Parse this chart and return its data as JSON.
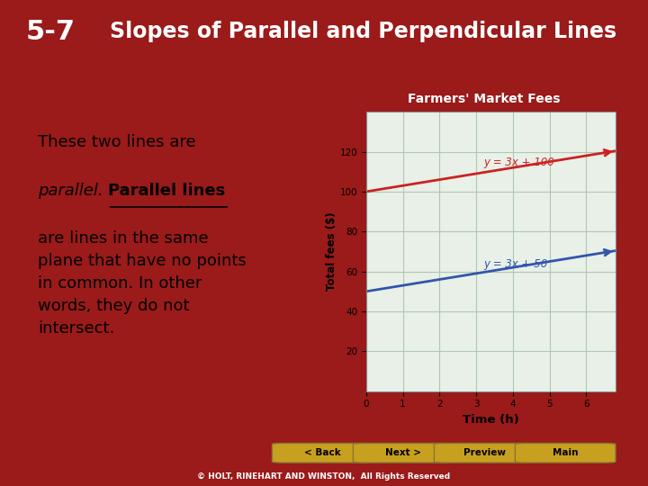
{
  "title_number": "5-7",
  "title_text": "Slopes of Parallel and Perpendicular Lines",
  "title_bg_color": "#8B0000",
  "title_text_color": "#FFFFFF",
  "main_bg_color": "#FFFFFF",
  "outer_bg_color": "#9B1A1A",
  "body_text_color": "#000000",
  "chart_title": "Farmers' Market Fees",
  "chart_title_bg": "#3A7FC1",
  "chart_title_text_color": "#FFFFFF",
  "chart_bg_color": "#E8F0E8",
  "chart_grid_color": "#B0C8B0",
  "chart_border_color": "#888888",
  "xlabel": "Time (h)",
  "ylabel": "Total fees ($)",
  "xlim": [
    0,
    6.8
  ],
  "ylim": [
    0,
    140
  ],
  "xticks": [
    0,
    1,
    2,
    3,
    4,
    5,
    6
  ],
  "yticks": [
    20,
    40,
    60,
    80,
    100,
    120
  ],
  "line1_slope": 3,
  "line1_intercept": 100,
  "line1_color": "#CC2222",
  "line1_label": "y = 3x + 100",
  "line2_slope": 3,
  "line2_intercept": 50,
  "line2_color": "#3355AA",
  "line2_label": "y = 3x + 50",
  "footer_text": "© HOLT, RINEHART AND WINSTON,  All Rights Reserved",
  "btn_color": "#C8A020",
  "btn_text_color": "#000000",
  "btn_labels": [
    "< Back",
    "Next >",
    "Preview",
    "Main"
  ]
}
